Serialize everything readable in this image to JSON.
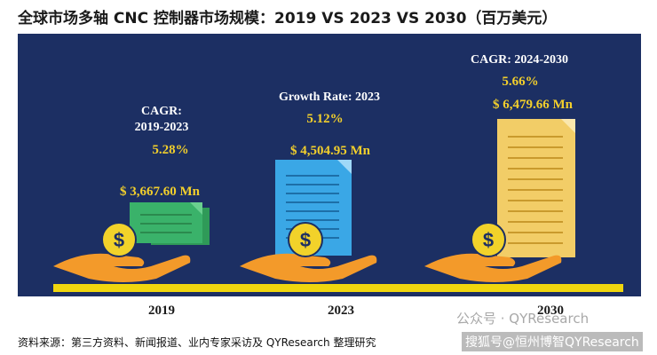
{
  "title": "全球市场多轴 CNC 控制器市场规模：2019 VS 2023 VS 2030（百万美元）",
  "chart_data": {
    "type": "bar",
    "categories": [
      "2019",
      "2023",
      "2030"
    ],
    "values": [
      3667.6,
      4504.95,
      6479.66
    ],
    "value_labels": [
      "$ 3,667.60 Mn",
      "$ 4,504.95 Mn",
      "$ 6,479.66 Mn"
    ],
    "rate_labels": [
      {
        "heading_lines": [
          "CAGR:",
          "2019-2023"
        ],
        "value": "5.28%"
      },
      {
        "heading_lines": [
          "Growth Rate: 2023"
        ],
        "value": "5.12%"
      },
      {
        "heading_lines": [
          "CAGR: 2024-2030"
        ],
        "value": "5.66%"
      }
    ],
    "colors": {
      "panel": "#1c2f63",
      "bar_2019": "#3ab26a",
      "bar_2023": "#3aa7e6",
      "bar_2030": "#f2cd67",
      "coin": "#f2d22a",
      "hand": "#f39a2a",
      "baseline": "#f0d60e",
      "rate_text": "#f2cf2c"
    },
    "icons": [
      "banknote-icon",
      "document-icon",
      "dollar-coin-icon",
      "hand-icon"
    ]
  },
  "footer": {
    "source": "资料来源：第三方资料、新闻报道、业内专家采访及 QYResearch 整理研究",
    "watermark": "公众号 · QYResearch",
    "search_tag": "搜狐号@恒州博智QYResearch"
  }
}
